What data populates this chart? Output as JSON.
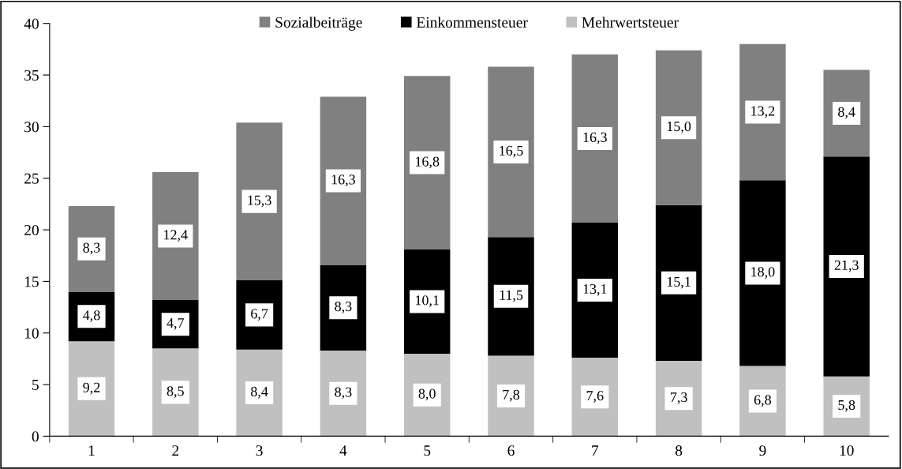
{
  "chart_data": {
    "type": "bar",
    "stacked": true,
    "grid": false,
    "legend": "top",
    "categories": [
      "1",
      "2",
      "3",
      "4",
      "5",
      "6",
      "7",
      "8",
      "9",
      "10"
    ],
    "series": [
      {
        "name": "Mehrwertsteuer",
        "color": "#c0c0c0",
        "values": [
          9.2,
          8.5,
          8.4,
          8.3,
          8.0,
          7.8,
          7.6,
          7.3,
          6.8,
          5.8
        ],
        "value_labels": [
          "9,2",
          "8,5",
          "8,4",
          "8,3",
          "8,0",
          "7,8",
          "7,6",
          "7,3",
          "6,8",
          "5,8"
        ]
      },
      {
        "name": "Einkommensteuer",
        "color": "#000000",
        "values": [
          4.8,
          4.7,
          6.7,
          8.3,
          10.1,
          11.5,
          13.1,
          15.1,
          18.0,
          21.3
        ],
        "value_labels": [
          "4,8",
          "4,7",
          "6,7",
          "8,3",
          "10,1",
          "11,5",
          "13,1",
          "15,1",
          "18,0",
          "21,3"
        ]
      },
      {
        "name": "Sozialbeiträge",
        "color": "#808080",
        "values": [
          8.3,
          12.4,
          15.3,
          16.3,
          16.8,
          16.5,
          16.3,
          15.0,
          13.2,
          8.4
        ],
        "value_labels": [
          "8,3",
          "12,4",
          "15,3",
          "16,3",
          "16,8",
          "16,5",
          "16,3",
          "15,0",
          "13,2",
          "8,4"
        ]
      }
    ],
    "ylim": [
      0,
      40
    ],
    "yticks": [
      0,
      5,
      10,
      15,
      20,
      25,
      30,
      35,
      40
    ]
  }
}
